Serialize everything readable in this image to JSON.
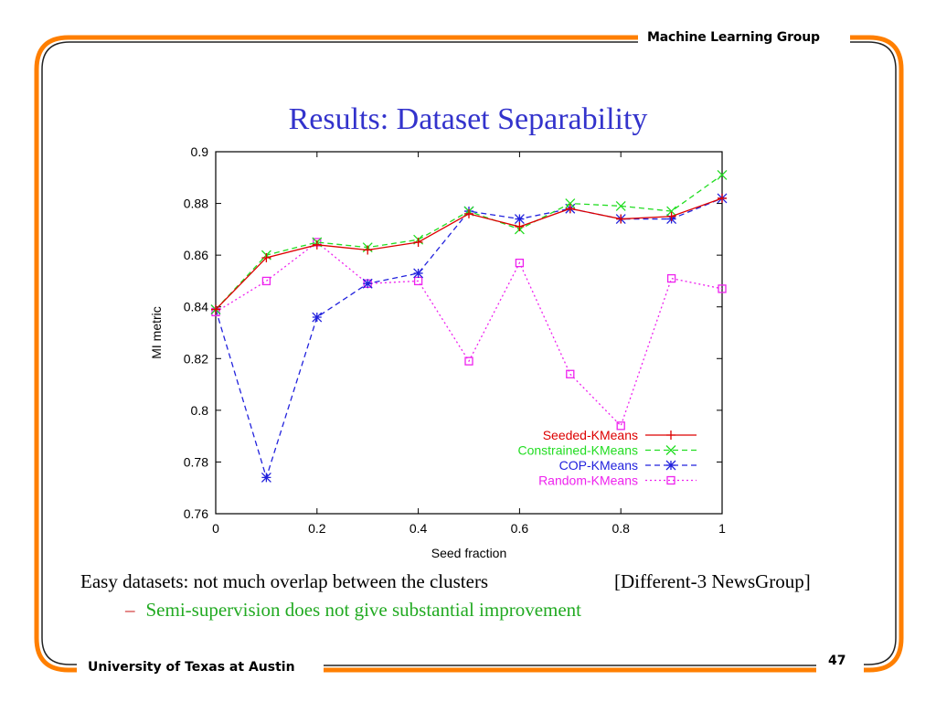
{
  "header": {
    "group": "Machine Learning Group"
  },
  "footer": {
    "university": "University of Texas at Austin",
    "page_number": "47"
  },
  "slide": {
    "title": "Results: Dataset Separability",
    "bullet_left": "Easy datasets: not much overlap between the clusters",
    "bullet_right": "[Different-3 NewsGroup]",
    "sub_bullet_dash": "–",
    "sub_bullet": "Semi-supervision does not give substantial improvement"
  },
  "colors": {
    "frame": "#ff7f00",
    "title": "#3333cc",
    "sub_bullet": "#22aa22"
  },
  "chart_data": {
    "type": "line",
    "xlabel": "Seed fraction",
    "ylabel": "MI metric",
    "xlim": [
      0,
      1
    ],
    "ylim": [
      0.76,
      0.9
    ],
    "xticks": [
      "0",
      "0.2",
      "0.4",
      "0.6",
      "0.8",
      "1"
    ],
    "yticks": [
      "0.76",
      "0.78",
      "0.8",
      "0.82",
      "0.84",
      "0.86",
      "0.88",
      "0.9"
    ],
    "legend_position": "bottom-right",
    "x": [
      0,
      0.1,
      0.2,
      0.3,
      0.4,
      0.5,
      0.6,
      0.7,
      0.8,
      0.9,
      1.0
    ],
    "series": [
      {
        "name": "Seeded-KMeans",
        "color": "#dd0000",
        "marker": "plus",
        "dash": "solid",
        "values": [
          0.839,
          0.859,
          0.864,
          0.862,
          0.865,
          0.876,
          0.871,
          0.878,
          0.874,
          0.875,
          0.882
        ]
      },
      {
        "name": "Constrained-KMeans",
        "color": "#22dd22",
        "marker": "cross",
        "dash": "dashed",
        "values": [
          0.839,
          0.86,
          0.865,
          0.863,
          0.866,
          0.877,
          0.87,
          0.88,
          0.879,
          0.877,
          0.891
        ]
      },
      {
        "name": "COP-KMeans",
        "color": "#2222dd",
        "marker": "star",
        "dash": "dashed",
        "values": [
          0.839,
          0.774,
          0.836,
          0.849,
          0.853,
          0.877,
          0.874,
          0.878,
          0.874,
          0.874,
          0.882
        ]
      },
      {
        "name": "Random-KMeans",
        "color": "#ee22ee",
        "marker": "square",
        "dash": "dotted",
        "values": [
          0.838,
          0.85,
          0.865,
          0.849,
          0.85,
          0.819,
          0.857,
          0.814,
          0.794,
          0.851,
          0.847
        ]
      }
    ]
  }
}
